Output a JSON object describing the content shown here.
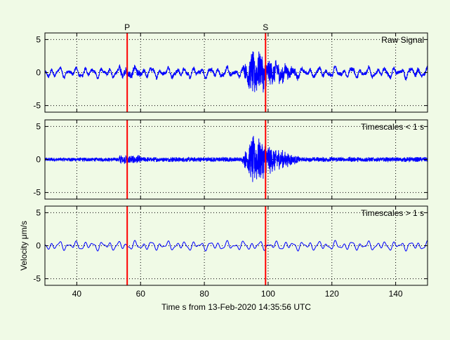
{
  "chart_data": {
    "type": "line",
    "xlabel": "Time s from 13-Feb-2020 14:35:56 UTC",
    "ylabel": "Velocity μm/s",
    "xlim": [
      30,
      150
    ],
    "x_ticks": [
      40,
      60,
      80,
      100,
      120,
      140
    ],
    "ylim": [
      -6,
      6
    ],
    "y_ticks": [
      5,
      0,
      -5
    ],
    "grid": true,
    "picks": [
      {
        "label": "P",
        "time": 55.8,
        "color": "#ff0000"
      },
      {
        "label": "S",
        "time": 99.2,
        "color": "#ff0000"
      }
    ],
    "series_color": "#0000ff",
    "panels": [
      {
        "title": "Raw Signal"
      },
      {
        "title": "Timescales < 1 s"
      },
      {
        "title": "Timescales > 1 s"
      }
    ]
  }
}
